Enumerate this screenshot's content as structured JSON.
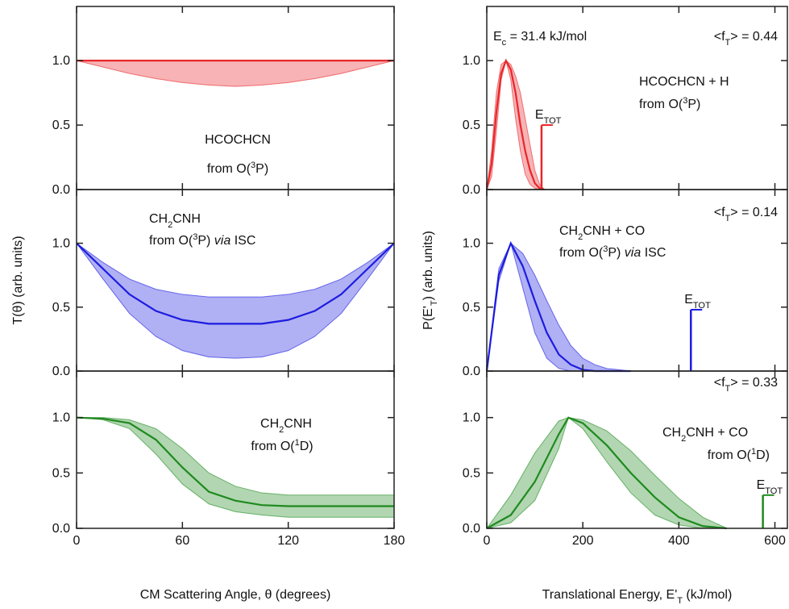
{
  "chart_data": [
    {
      "type": "line",
      "xlim": [
        0,
        180
      ],
      "ylim": [
        0,
        1.42
      ],
      "xticks": [
        0,
        60,
        120,
        180
      ],
      "yticks": [
        {
          "value": 0,
          "label": "0.0"
        },
        0.5,
        {
          "value": 1,
          "label": "1.0"
        }
      ],
      "series": [
        {
          "color": "#e8262a",
          "x": [
            0,
            15,
            30,
            45,
            60,
            75,
            90,
            105,
            120,
            135,
            150,
            165,
            180
          ],
          "values": [
            1,
            1,
            1,
            1,
            1,
            1,
            1,
            1,
            1,
            1,
            1,
            1,
            1
          ],
          "band_lower": [
            1,
            0.95,
            0.9,
            0.86,
            0.83,
            0.81,
            0.8,
            0.81,
            0.83,
            0.86,
            0.9,
            0.95,
            1
          ],
          "band_upper": [
            1,
            1,
            1,
            1,
            1,
            1,
            1,
            1,
            1,
            1,
            1,
            1,
            1
          ]
        }
      ],
      "annotations": [
        {
          "segments": [
            {
              "text": "HCOCHCN"
            }
          ]
        },
        {
          "segments": [
            {
              "text": "from O("
            },
            {
              "text": "3",
              "sup": true
            },
            {
              "text": "P)"
            }
          ]
        }
      ]
    },
    {
      "type": "line",
      "xlim": [
        0,
        180
      ],
      "ylim": [
        0,
        1.42
      ],
      "xticks": [
        0,
        60,
        120,
        180
      ],
      "yticks": [
        {
          "value": 0,
          "label": "0.0"
        },
        0.5,
        {
          "value": 1,
          "label": "1.0"
        }
      ],
      "ylabel": {
        "segments": [
          {
            "text": "T(θ) (arb. units)"
          }
        ]
      },
      "series": [
        {
          "color": "#1c1ce0",
          "x": [
            0,
            15,
            30,
            45,
            60,
            75,
            90,
            105,
            120,
            135,
            150,
            165,
            180
          ],
          "values": [
            1,
            0.8,
            0.6,
            0.47,
            0.4,
            0.37,
            0.37,
            0.37,
            0.4,
            0.47,
            0.6,
            0.8,
            1
          ],
          "band_lower": [
            1,
            0.72,
            0.45,
            0.27,
            0.16,
            0.11,
            0.1,
            0.11,
            0.16,
            0.27,
            0.45,
            0.72,
            1
          ],
          "band_upper": [
            1,
            0.85,
            0.72,
            0.64,
            0.6,
            0.58,
            0.58,
            0.58,
            0.6,
            0.64,
            0.72,
            0.85,
            1
          ]
        }
      ],
      "annotations": [
        {
          "segments": [
            {
              "text": "CH"
            },
            {
              "text": "2",
              "sub": true
            },
            {
              "text": "CNH"
            }
          ]
        },
        {
          "segments": [
            {
              "text": "from O("
            },
            {
              "text": "3",
              "sup": true
            },
            {
              "text": "P) "
            },
            {
              "text": "via",
              "italic": true
            },
            {
              "text": " ISC"
            }
          ]
        }
      ]
    },
    {
      "type": "line",
      "xlim": [
        0,
        180
      ],
      "ylim": [
        0,
        1.42
      ],
      "xticks": [
        0,
        60,
        120,
        180
      ],
      "show_xtick_labels": true,
      "yticks": [
        {
          "value": 0,
          "label": "0.0"
        },
        0.5,
        {
          "value": 1,
          "label": "1.0"
        }
      ],
      "xlabel": {
        "segments": [
          {
            "text": "CM Scattering Angle, θ (degrees)"
          }
        ]
      },
      "series": [
        {
          "color": "#1f8a1f",
          "x": [
            0,
            15,
            30,
            45,
            60,
            75,
            90,
            105,
            120,
            135,
            150,
            165,
            180
          ],
          "values": [
            1,
            0.99,
            0.95,
            0.8,
            0.55,
            0.33,
            0.25,
            0.21,
            0.2,
            0.2,
            0.2,
            0.2,
            0.2
          ],
          "band_lower": [
            1,
            0.98,
            0.9,
            0.67,
            0.4,
            0.22,
            0.15,
            0.12,
            0.1,
            0.1,
            0.1,
            0.1,
            0.1
          ],
          "band_upper": [
            1,
            1,
            0.98,
            0.9,
            0.72,
            0.5,
            0.38,
            0.32,
            0.3,
            0.3,
            0.3,
            0.3,
            0.3
          ]
        }
      ],
      "annotations": [
        {
          "segments": [
            {
              "text": "CH"
            },
            {
              "text": "2",
              "sub": true
            },
            {
              "text": "CNH"
            }
          ]
        },
        {
          "segments": [
            {
              "text": "from O("
            },
            {
              "text": "1",
              "sup": true
            },
            {
              "text": "D)"
            }
          ]
        }
      ]
    },
    {
      "type": "line",
      "xlim": [
        0,
        626
      ],
      "ylim": [
        0,
        1.42
      ],
      "xticks": [
        0,
        200,
        400,
        600
      ],
      "yticks": [
        {
          "value": 0,
          "label": "0.0"
        },
        0.5,
        {
          "value": 1,
          "label": "1.0"
        }
      ],
      "series": [
        {
          "color": "#e8262a",
          "x": [
            0,
            10,
            20,
            30,
            40,
            50,
            60,
            70,
            80,
            90,
            100,
            110,
            120
          ],
          "values": [
            0,
            0.2,
            0.6,
            0.9,
            1,
            0.93,
            0.75,
            0.5,
            0.3,
            0.15,
            0.05,
            0.01,
            0
          ],
          "band_lower": [
            0,
            0.1,
            0.45,
            0.85,
            1,
            0.85,
            0.55,
            0.3,
            0.12,
            0.04,
            0.01,
            0,
            0
          ],
          "band_upper": [
            0,
            0.3,
            0.75,
            0.97,
            1,
            0.97,
            0.88,
            0.75,
            0.55,
            0.35,
            0.15,
            0.04,
            0
          ]
        }
      ],
      "etot": {
        "value": 114,
        "height": 0.5,
        "label": {
          "segments": [
            {
              "text": "E"
            },
            {
              "text": "TOT",
              "sub": true
            }
          ]
        }
      },
      "annotations": [
        {
          "segments": [
            {
              "text": "E"
            },
            {
              "text": "c",
              "sub": true
            },
            {
              "text": " = 31.4 kJ/mol"
            }
          ]
        },
        {
          "segments": [
            {
              "text": "<f"
            },
            {
              "text": "T",
              "sub": true
            },
            {
              "text": "> = 0.44"
            }
          ]
        },
        {
          "segments": [
            {
              "text": "HCOCHCN + H"
            }
          ]
        },
        {
          "segments": [
            {
              "text": "from O("
            },
            {
              "text": "3",
              "sup": true
            },
            {
              "text": "P)"
            }
          ]
        }
      ]
    },
    {
      "type": "line",
      "xlim": [
        0,
        626
      ],
      "ylim": [
        0,
        1.42
      ],
      "xticks": [
        0,
        200,
        400,
        600
      ],
      "yticks": [
        {
          "value": 0,
          "label": "0.0"
        },
        0.5,
        {
          "value": 1,
          "label": "1.0"
        }
      ],
      "ylabel": {
        "segments": [
          {
            "text": "P(E'"
          },
          {
            "text": "T",
            "sub": true
          },
          {
            "text": ") (arb. units)"
          }
        ]
      },
      "series": [
        {
          "color": "#1c1ce0",
          "x": [
            0,
            25,
            50,
            75,
            100,
            125,
            150,
            175,
            200,
            225,
            250,
            275,
            300
          ],
          "values": [
            0,
            0.75,
            1,
            0.82,
            0.55,
            0.3,
            0.13,
            0.05,
            0.01,
            0,
            0,
            0,
            0
          ],
          "band_lower": [
            0,
            0.7,
            1,
            0.65,
            0.3,
            0.1,
            0.02,
            0,
            0,
            0,
            0,
            0,
            0
          ],
          "band_upper": [
            0,
            0.8,
            1,
            0.92,
            0.75,
            0.55,
            0.36,
            0.2,
            0.1,
            0.05,
            0.02,
            0.01,
            0
          ]
        }
      ],
      "etot": {
        "value": 425,
        "height": 0.48,
        "label": {
          "segments": [
            {
              "text": "E"
            },
            {
              "text": "TOT",
              "sub": true
            }
          ]
        }
      },
      "annotations": [
        {
          "segments": [
            {
              "text": "<f"
            },
            {
              "text": "T",
              "sub": true
            },
            {
              "text": "> = 0.14"
            }
          ]
        },
        {
          "segments": [
            {
              "text": "CH"
            },
            {
              "text": "2",
              "sub": true
            },
            {
              "text": "CNH + CO"
            }
          ]
        },
        {
          "segments": [
            {
              "text": "from O("
            },
            {
              "text": "3",
              "sup": true
            },
            {
              "text": "P) "
            },
            {
              "text": "via",
              "italic": true
            },
            {
              "text": " ISC"
            }
          ]
        }
      ]
    },
    {
      "type": "line",
      "xlim": [
        0,
        626
      ],
      "ylim": [
        0,
        1.42
      ],
      "xticks": [
        0,
        200,
        400,
        600
      ],
      "show_xtick_labels": true,
      "yticks": [
        {
          "value": 0,
          "label": "0.0"
        },
        0.5,
        {
          "value": 1,
          "label": "1.0"
        }
      ],
      "xlabel": {
        "segments": [
          {
            "text": "Translational Energy, E'"
          },
          {
            "text": "T",
            "sub": true
          },
          {
            "text": " (kJ/mol)"
          }
        ]
      },
      "series": [
        {
          "color": "#1f8a1f",
          "x": [
            0,
            50,
            100,
            150,
            170,
            200,
            250,
            300,
            350,
            400,
            450,
            500
          ],
          "values": [
            0,
            0.12,
            0.42,
            0.85,
            1,
            0.95,
            0.75,
            0.5,
            0.28,
            0.1,
            0.02,
            0
          ],
          "band_lower": [
            0,
            0.05,
            0.25,
            0.72,
            1,
            0.9,
            0.6,
            0.32,
            0.12,
            0.03,
            0,
            0
          ],
          "band_upper": [
            0,
            0.3,
            0.68,
            0.97,
            1,
            0.98,
            0.88,
            0.7,
            0.48,
            0.27,
            0.1,
            0
          ]
        }
      ],
      "etot": {
        "value": 575,
        "height": 0.3,
        "label": {
          "segments": [
            {
              "text": "E"
            },
            {
              "text": "TOT",
              "sub": true
            }
          ]
        }
      },
      "annotations": [
        {
          "segments": [
            {
              "text": "<f"
            },
            {
              "text": "T",
              "sub": true
            },
            {
              "text": "> = 0.33"
            }
          ]
        },
        {
          "segments": [
            {
              "text": "CH"
            },
            {
              "text": "2",
              "sub": true
            },
            {
              "text": "CNH + CO"
            }
          ]
        },
        {
          "segments": [
            {
              "text": "from O("
            },
            {
              "text": "1",
              "sup": true
            },
            {
              "text": "D)"
            }
          ]
        }
      ]
    }
  ]
}
